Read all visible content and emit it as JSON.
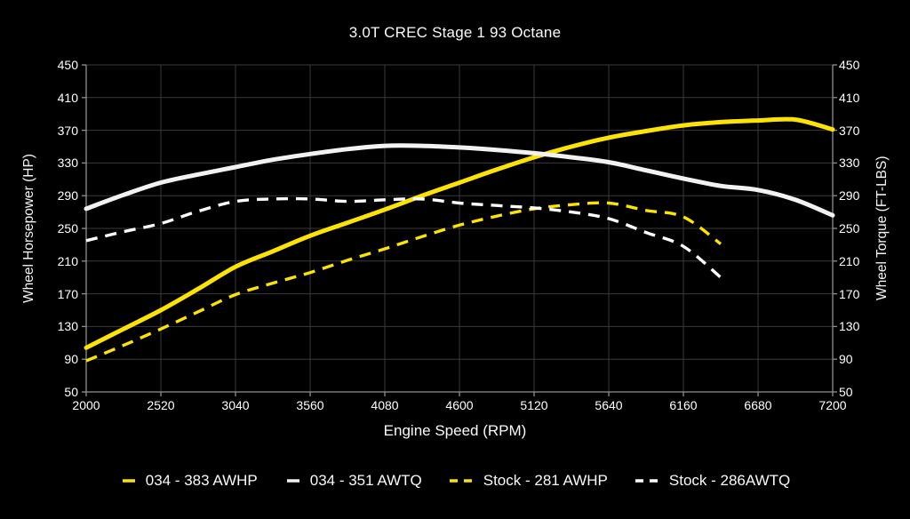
{
  "title": "3.0T CREC Stage 1 93 Octane",
  "colors": {
    "background": "#000000",
    "grid": "#3a3a3a",
    "frame": "#8f8f8f",
    "text": "#f5f5f5",
    "accent_yellow": "#fce303",
    "accent_white": "#f2f2f2"
  },
  "chart_data": {
    "type": "line",
    "title": "3.0T CREC Stage 1 93 Octane",
    "xlabel": "Engine Speed (RPM)",
    "ylabel_left": "Wheel Horsepower (HP)",
    "ylabel_right": "Wheel Torque (FT-LBS)",
    "xlim": [
      2000,
      7200
    ],
    "ylim": [
      50,
      450
    ],
    "x_ticks": [
      2000,
      2520,
      3040,
      3560,
      4080,
      4600,
      5120,
      5640,
      6160,
      6680,
      7200
    ],
    "y_ticks": [
      50,
      90,
      130,
      170,
      210,
      250,
      290,
      330,
      370,
      410,
      450
    ],
    "grid": true,
    "legend_position": "bottom",
    "x": [
      2000,
      2260,
      2520,
      2780,
      3040,
      3300,
      3560,
      3820,
      4080,
      4340,
      4600,
      4860,
      5120,
      5380,
      5640,
      5900,
      6160,
      6420,
      6680,
      6940,
      7200
    ],
    "series": [
      {
        "name": "034 - 383 AWHP",
        "color": "#fce303",
        "style": "solid",
        "values": [
          104,
          127,
          150,
          176,
          203,
          222,
          241,
          257,
          273,
          290,
          306,
          322,
          337,
          350,
          361,
          369,
          376,
          380,
          382,
          383,
          371
        ]
      },
      {
        "name": "034 - 351 AWTQ",
        "color": "#f2f2f2",
        "style": "solid",
        "values": [
          274,
          291,
          306,
          316,
          325,
          334,
          341,
          347,
          351,
          351,
          349,
          346,
          342,
          337,
          331,
          321,
          311,
          302,
          297,
          285,
          266
        ]
      },
      {
        "name": "Stock - 281 AWHP",
        "color": "#fce303",
        "style": "dashed",
        "values": [
          88,
          107,
          127,
          148,
          169,
          183,
          196,
          211,
          225,
          240,
          254,
          265,
          274,
          279,
          281,
          272,
          264,
          231,
          null,
          null,
          null
        ]
      },
      {
        "name": "Stock - 286AWTQ",
        "color": "#ffffff",
        "style": "dashed",
        "values": [
          235,
          246,
          256,
          271,
          283,
          286,
          286,
          283,
          285,
          286,
          281,
          278,
          275,
          270,
          262,
          245,
          228,
          190,
          null,
          null,
          null
        ]
      }
    ]
  }
}
